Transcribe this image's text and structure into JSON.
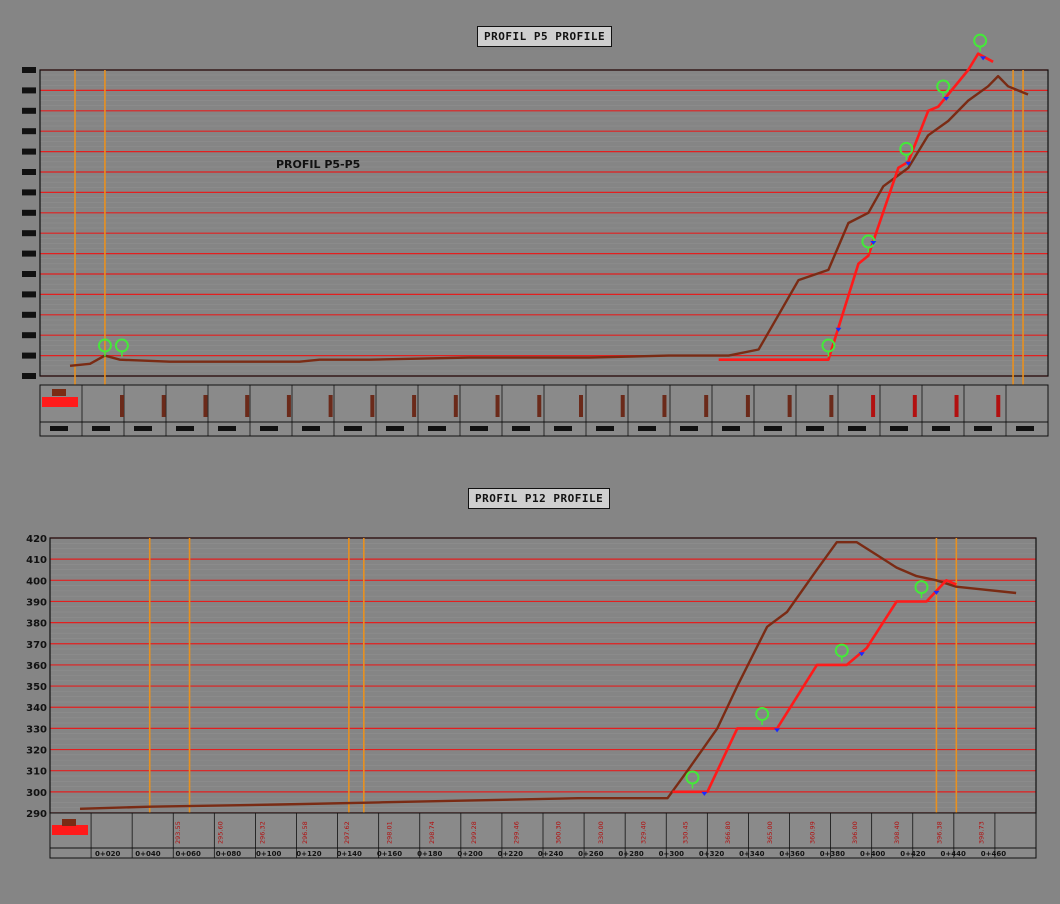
{
  "colors": {
    "background": "#858585",
    "grid_major": "#e21f1f",
    "grid_minor": "#8f8f8f",
    "terrain": "#7a2b14",
    "design": "#ff1a1a",
    "marker_vertical": "#e8901f",
    "tree": "#45e83a",
    "point": "#1a2cff",
    "frame": "#111111"
  },
  "chart_data": [
    {
      "type": "line",
      "title": "PROFIL P5 PROFILE",
      "annotation": "PROFIL P5-P5",
      "ylabels_legible": false,
      "ylim": [
        290,
        440
      ],
      "x_ticks": [],
      "series": [
        {
          "role": "terrain",
          "points": [
            [
              0,
              295
            ],
            [
              20,
              296
            ],
            [
              35,
              300
            ],
            [
              50,
              298
            ],
            [
              100,
              297
            ],
            [
              180,
              297
            ],
            [
              230,
              297
            ],
            [
              250,
              298
            ],
            [
              300,
              298
            ],
            [
              400,
              299
            ],
            [
              520,
              299
            ],
            [
              600,
              300
            ],
            [
              660,
              300
            ],
            [
              690,
              303
            ],
            [
              710,
              320
            ],
            [
              730,
              337
            ],
            [
              760,
              342
            ],
            [
              780,
              365
            ],
            [
              800,
              370
            ],
            [
              815,
              383
            ],
            [
              840,
              392
            ],
            [
              860,
              408
            ],
            [
              880,
              415
            ],
            [
              900,
              425
            ],
            [
              920,
              432
            ],
            [
              930,
              437
            ],
            [
              940,
              432
            ],
            [
              960,
              428
            ]
          ]
        },
        {
          "role": "design",
          "points": [
            [
              650,
              298
            ],
            [
              760,
              298
            ],
            [
              790,
              345
            ],
            [
              800,
              349
            ],
            [
              830,
              392
            ],
            [
              840,
              395
            ],
            [
              860,
              420
            ],
            [
              870,
              422
            ],
            [
              900,
              440
            ],
            [
              910,
              448
            ],
            [
              925,
              444
            ]
          ]
        }
      ],
      "vertical_markers": [
        5,
        35,
        945,
        955
      ],
      "trees": [
        35,
        52,
        760,
        800,
        838,
        875,
        912
      ],
      "points": [
        770,
        805,
        840,
        878,
        915
      ]
    },
    {
      "type": "line",
      "title": "PROFIL P12 PROFILE",
      "annotation": "",
      "y_ticks": [
        290,
        300,
        310,
        320,
        330,
        340,
        350,
        360,
        370,
        380,
        390,
        400,
        410,
        420
      ],
      "ylim": [
        290,
        420
      ],
      "x_ticks": [
        "0+020",
        "0+040",
        "0+060",
        "0+080",
        "0+100",
        "0+120",
        "0+140",
        "0+160",
        "0+180",
        "0+200",
        "0+220",
        "0+240",
        "0+260",
        "0+280",
        "0+300",
        "0+320",
        "0+340",
        "0+360",
        "0+380",
        "0+400",
        "0+420",
        "0+440",
        "0+460"
      ],
      "labels_row": [
        "293.55",
        "295.60",
        "296.32",
        "296.58",
        "297.62",
        "298.01",
        "298.74",
        "299.28",
        "299.46",
        "300.30",
        "330.00",
        "329.40",
        "330.45",
        "366.80",
        "365.00",
        "360.99",
        "396.00",
        "398.40",
        "396.38",
        "398.73"
      ],
      "series": [
        {
          "role": "terrain",
          "points": [
            [
              0,
              292
            ],
            [
              70,
              293
            ],
            [
              200,
              294
            ],
            [
              300,
              295
            ],
            [
              400,
              296
            ],
            [
              500,
              297
            ],
            [
              570,
              297
            ],
            [
              590,
              297
            ],
            [
              610,
              310
            ],
            [
              640,
              330
            ],
            [
              660,
              350
            ],
            [
              690,
              378
            ],
            [
              710,
              385
            ],
            [
              740,
              405
            ],
            [
              760,
              418
            ],
            [
              780,
              418
            ],
            [
              800,
              412
            ],
            [
              820,
              406
            ],
            [
              840,
              402
            ],
            [
              860,
              400
            ],
            [
              880,
              397
            ],
            [
              900,
              396
            ],
            [
              940,
              394
            ]
          ]
        },
        {
          "role": "design",
          "points": [
            [
              595,
              300
            ],
            [
              630,
              300
            ],
            [
              660,
              330
            ],
            [
              700,
              330
            ],
            [
              720,
              345
            ],
            [
              740,
              360
            ],
            [
              770,
              360
            ],
            [
              790,
              368
            ],
            [
              820,
              390
            ],
            [
              850,
              390
            ],
            [
              870,
              400
            ],
            [
              880,
              398
            ]
          ]
        }
      ],
      "vertical_markers": [
        70,
        110,
        270,
        285,
        860,
        880
      ],
      "trees": [
        615,
        685,
        765,
        845
      ],
      "points": [
        627,
        700,
        785,
        860
      ]
    }
  ]
}
